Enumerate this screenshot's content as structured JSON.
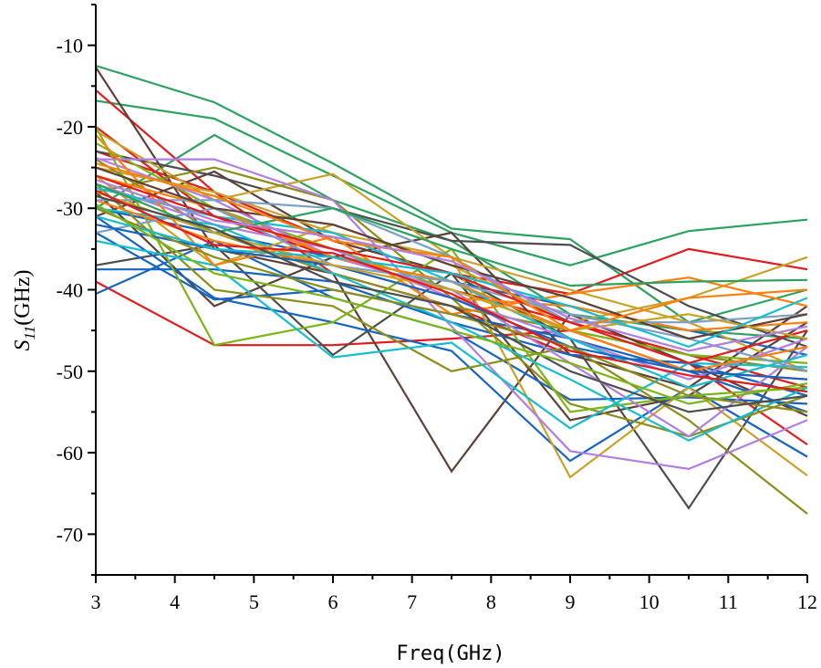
{
  "chart_data": {
    "type": "line",
    "title": "",
    "xlabel": "Freq(GHz)",
    "ylabel_main": "S",
    "ylabel_sub": "11",
    "ylabel_unit": "(GHz)",
    "xlim": [
      3,
      12
    ],
    "ylim": [
      -75,
      -5
    ],
    "xticks": [
      3,
      4,
      5,
      6,
      7,
      8,
      9,
      10,
      11,
      12
    ],
    "yticks": [
      -70,
      -60,
      -50,
      -40,
      -30,
      -20,
      -10
    ],
    "grid": false,
    "legend": "none",
    "x": [
      3,
      4.5,
      6,
      7.5,
      9,
      10.5,
      12
    ],
    "series": [
      {
        "color": "#2ca25f",
        "values": [
          -12.5,
          -17,
          -24.5,
          -32.5,
          -33.8,
          -44,
          -40
        ]
      },
      {
        "color": "#2ca25f",
        "values": [
          -16.8,
          -19,
          -26,
          -33,
          -37,
          -32.8,
          -31.4
        ]
      },
      {
        "color": "#2ca25f",
        "values": [
          -30,
          -21,
          -29,
          -34,
          -43,
          -45,
          -46
        ]
      },
      {
        "color": "#e41a1c",
        "values": [
          -15.5,
          -28,
          -34,
          -38,
          -40.5,
          -35,
          -37.5
        ]
      },
      {
        "color": "#e41a1c",
        "values": [
          -39,
          -46.8,
          -46.8,
          -46,
          -45,
          -50,
          -51
        ]
      },
      {
        "color": "#e41a1c",
        "values": [
          -20,
          -31,
          -36,
          -40,
          -44,
          -48,
          -52
        ]
      },
      {
        "color": "#e41a1c",
        "values": [
          -23,
          -28,
          -38,
          -42,
          -48,
          -49,
          -59
        ]
      },
      {
        "color": "#5d4037",
        "values": [
          -12.7,
          -35,
          -38,
          -62.3,
          -43,
          -49,
          -55.5
        ]
      },
      {
        "color": "#5d4037",
        "values": [
          -28,
          -42,
          -36,
          -33,
          -48,
          -52,
          -42
        ]
      },
      {
        "color": "#5d4037",
        "values": [
          -31,
          -25.5,
          -34,
          -38,
          -56,
          -53,
          -44
        ]
      },
      {
        "color": "#4d4d4d",
        "values": [
          -37,
          -34.5,
          -48,
          -38,
          -46,
          -66.8,
          -45
        ]
      },
      {
        "color": "#4d4d4d",
        "values": [
          -23,
          -26,
          -30,
          -34,
          -34.5,
          -42,
          -47
        ]
      },
      {
        "color": "#1565c0",
        "values": [
          -31,
          -41,
          -44,
          -47.5,
          -61,
          -52,
          -60.5
        ]
      },
      {
        "color": "#1565c0",
        "values": [
          -37.5,
          -37.5,
          -39,
          -44,
          -48,
          -49,
          -53
        ]
      },
      {
        "color": "#1565c0",
        "values": [
          -40.5,
          -34,
          -41,
          -45,
          -53.5,
          -53.2,
          -54
        ]
      },
      {
        "color": "#1565c0",
        "values": [
          -33,
          -41.2,
          -40,
          -43,
          -46,
          -50,
          -55
        ]
      },
      {
        "color": "#1565c0",
        "values": [
          -30,
          -33,
          -36,
          -39,
          -42,
          -45,
          -48
        ]
      },
      {
        "color": "#c9a227",
        "values": [
          -20.5,
          -29,
          -25.8,
          -36,
          -63,
          -52,
          -62.8
        ]
      },
      {
        "color": "#c9a227",
        "values": [
          -26,
          -37,
          -32,
          -37,
          -44,
          -41,
          -36
        ]
      },
      {
        "color": "#c9a227",
        "values": [
          -25,
          -28,
          -33,
          -36,
          -40,
          -44,
          -50
        ]
      },
      {
        "color": "#8d8d1a",
        "values": [
          -27,
          -40,
          -42,
          -50,
          -47,
          -56,
          -67.5
        ]
      },
      {
        "color": "#8d8d1a",
        "values": [
          -28,
          -25,
          -29,
          -41,
          -54,
          -58,
          -53
        ]
      },
      {
        "color": "#8d8d1a",
        "values": [
          -24,
          -33,
          -38,
          -42,
          -45,
          -48,
          -50
        ]
      },
      {
        "color": "#7cb518",
        "values": [
          -20,
          -46.8,
          -44,
          -35,
          -55,
          -53,
          -52
        ]
      },
      {
        "color": "#7cb518",
        "values": [
          -22,
          -30,
          -35,
          -40,
          -45,
          -48,
          -49
        ]
      },
      {
        "color": "#b27ee0",
        "values": [
          -24,
          -24,
          -29,
          -44.5,
          -59.8,
          -62,
          -56
        ]
      },
      {
        "color": "#b27ee0",
        "values": [
          -23.8,
          -29,
          -36,
          -40,
          -49,
          -58,
          -47
        ]
      },
      {
        "color": "#b27ee0",
        "values": [
          -27,
          -32,
          -35,
          -41,
          -46,
          -51,
          -46
        ]
      },
      {
        "color": "#17becf",
        "values": [
          -34,
          -37,
          -48.3,
          -46.5,
          -57,
          -49,
          -49.5
        ]
      },
      {
        "color": "#17becf",
        "values": [
          -30,
          -32,
          -38,
          -44,
          -51,
          -58.5,
          -52
        ]
      },
      {
        "color": "#17becf",
        "values": [
          -27.5,
          -31,
          -33,
          -39,
          -46,
          -52,
          -48
        ]
      },
      {
        "color": "#ff7f0e",
        "values": [
          -21,
          -37,
          -33.5,
          -43,
          -40.5,
          -38.5,
          -42
        ]
      },
      {
        "color": "#ff7f0e",
        "values": [
          -26,
          -30,
          -36,
          -39,
          -45,
          -50,
          -47
        ]
      },
      {
        "color": "#ff7f0e",
        "values": [
          -29,
          -34,
          -37,
          -41,
          -42,
          -45,
          -44
        ]
      },
      {
        "color": "#7b9fc7",
        "values": [
          -33,
          -30,
          -37,
          -39,
          -43,
          -46,
          -50
        ]
      },
      {
        "color": "#7b9fc7",
        "values": [
          -29,
          -29,
          -30,
          -36,
          -44,
          -44,
          -43
        ]
      },
      {
        "color": "#2ca25f",
        "values": [
          -27,
          -33,
          -30,
          -35,
          -39.5,
          -39,
          -38.8
        ]
      },
      {
        "color": "#e41a1c",
        "values": [
          -26,
          -31,
          -35,
          -38,
          -44,
          -49,
          -45
        ]
      },
      {
        "color": "#5d4037",
        "values": [
          -25,
          -30,
          -32,
          -37,
          -41,
          -46,
          -43
        ]
      },
      {
        "color": "#1565c0",
        "values": [
          -32,
          -35,
          -37,
          -41,
          -47,
          -50,
          -51
        ]
      },
      {
        "color": "#c9a227",
        "values": [
          -28,
          -33,
          -37,
          -40,
          -45,
          -43,
          -46
        ]
      },
      {
        "color": "#8d8d1a",
        "values": [
          -30,
          -36,
          -40,
          -43,
          -47,
          -53,
          -55
        ]
      },
      {
        "color": "#17becf",
        "values": [
          -31,
          -35,
          -36,
          -38,
          -42,
          -47,
          -41
        ]
      },
      {
        "color": "#ff7f0e",
        "values": [
          -24.5,
          -28.5,
          -34,
          -36,
          -45,
          -41,
          -40
        ]
      },
      {
        "color": "#b27ee0",
        "values": [
          -26.5,
          -31.5,
          -33.5,
          -36.5,
          -43.5,
          -47.5,
          -44.5
        ]
      },
      {
        "color": "#4d4d4d",
        "values": [
          -28.5,
          -32.5,
          -39,
          -42,
          -50,
          -55,
          -53
        ]
      },
      {
        "color": "#7cb518",
        "values": [
          -29.5,
          -38,
          -41,
          -45,
          -49,
          -54,
          -51.5
        ]
      },
      {
        "color": "#e41a1c",
        "values": [
          -27.8,
          -34.5,
          -35.5,
          -40.5,
          -47.5,
          -50.5,
          -52.5
        ]
      }
    ]
  }
}
